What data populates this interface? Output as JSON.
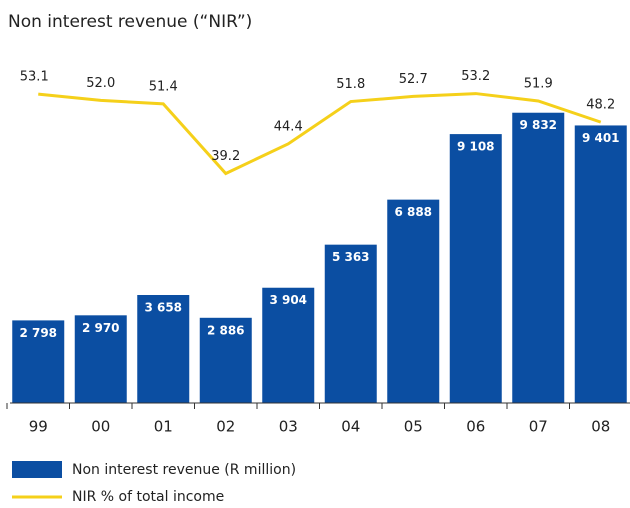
{
  "chart_data": {
    "type": "bar-line",
    "title": "Non interest revenue (“NIR”)",
    "categories": [
      "99",
      "00",
      "01",
      "02",
      "03",
      "04",
      "05",
      "06",
      "07",
      "08"
    ],
    "ylim": [
      0,
      10500
    ],
    "y2lim": [
      -1,
      53.3
    ],
    "series": [
      {
        "name": "Non interest revenue (R million)",
        "color": "#0b4ea2",
        "type": "bar",
        "values": [
          2798,
          2970,
          3658,
          2886,
          3904,
          5363,
          6888,
          9108,
          9832,
          9401
        ],
        "value_labels": [
          "2 798",
          "2 970",
          "3 658",
          "2 886",
          "3 904",
          "5 363",
          "6 888",
          "9 108",
          "9 832",
          "9 401"
        ]
      },
      {
        "name": "NIR % of total income",
        "color": "#f5d01a",
        "type": "line",
        "axis": "y2",
        "values": [
          53.1,
          52.0,
          51.4,
          39.2,
          44.4,
          51.8,
          52.7,
          53.2,
          51.9,
          48.2
        ],
        "value_labels": [
          "53.1",
          "52.0",
          "51.4",
          "39.2",
          "44.4",
          "51.8",
          "52.7",
          "53.2",
          "51.9",
          "48.2"
        ]
      }
    ]
  }
}
